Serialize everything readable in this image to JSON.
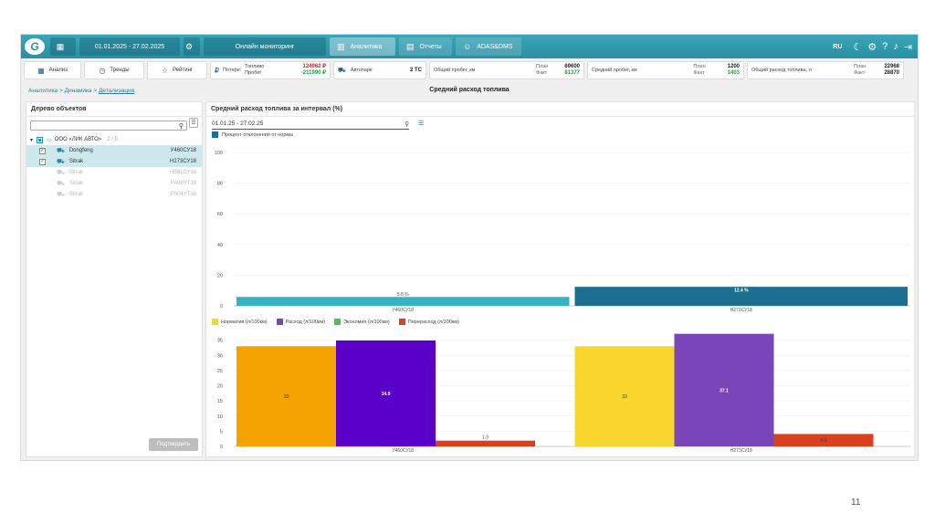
{
  "topbar": {
    "date_range": "01.01.2025 - 27.02.2025",
    "tabs": [
      "Онлайн мониторинг",
      "Аналитика",
      "Отчеты",
      "ADAS&DMS"
    ],
    "lang": "RU"
  },
  "subbar": {
    "buttons": [
      "Анализ",
      "Тренды",
      "Рейтинг"
    ],
    "losses_label": "Потери:",
    "fuel_label": "Топливо",
    "mileage_label": "Пробег",
    "fuel_value": "124962 ₽",
    "mileage_value": "-211990 ₽",
    "fleet_label": "Автопарк:",
    "fleet_value": "2 ТС",
    "kpis": [
      {
        "label": "Общий пробег, км",
        "plan_label": "План",
        "fact_label": "Факт",
        "plan": "69600",
        "fact": "81377"
      },
      {
        "label": "Средний пробег, км",
        "plan_label": "План",
        "fact_label": "Факт",
        "plan": "1200",
        "fact": "1403"
      },
      {
        "label": "Общий расход топлива, л",
        "plan_label": "План",
        "fact_label": "Факт",
        "plan": "22968",
        "fact": "28870"
      }
    ]
  },
  "breadcrumb": {
    "items": [
      "Аналитика",
      "Динамика"
    ],
    "current": "Детализация",
    "sep": " > "
  },
  "page_title": "Средний расход топлива",
  "tree": {
    "title": "Дерево объектов",
    "org": "ООО «ЛИК АВТО»",
    "org_count": "2 / 5",
    "vehicles": [
      {
        "name": "Dongfeng",
        "plate": "У460СУ18",
        "selected": true
      },
      {
        "name": "Sitrak",
        "plate": "Н273СУ18",
        "selected": true
      },
      {
        "name": "Sitrak",
        "plate": "Н561СУ18",
        "selected": false
      },
      {
        "name": "Sitrak",
        "plate": "Р499УТ18",
        "selected": false
      },
      {
        "name": "Sitrak",
        "plate": "Р504УТ18",
        "selected": false
      }
    ],
    "confirm_label": "Подтвердить"
  },
  "chart_panel": {
    "title": "Средний расход топлива за интервал (%)",
    "date_range": "01.01.25 - 27.02.25"
  },
  "colors": {
    "accent": "#2a8fa3",
    "deviation_1": "#36b3c0",
    "deviation_2": "#1b6e8f",
    "norm": "#f5a300",
    "norm_2": "#f9d62e",
    "consumption": "#5a00c8",
    "consumption_2": "#7a45b8",
    "economy": "#5cb85c",
    "overuse": "#d9411e"
  },
  "chart_data": [
    {
      "type": "bar",
      "orientation": "horizontal-bars",
      "categories": [
        "У460СУ18",
        "Н273СУ18"
      ],
      "series": [
        {
          "name": "Процент отклонения от нормы",
          "values": [
            5.8,
            12.4
          ]
        }
      ],
      "data_labels": [
        "5.8 %",
        "12.4 %"
      ],
      "yticks": [
        0,
        20,
        40,
        60,
        80,
        100
      ],
      "ylim": [
        0,
        100
      ],
      "legend": "top-left"
    },
    {
      "type": "bar",
      "categories": [
        "У460СУ18",
        "Н273СУ18"
      ],
      "series": [
        {
          "name": "Норматив (л/100км)",
          "values": [
            33,
            33
          ]
        },
        {
          "name": "Расход (л/100км)",
          "values": [
            34.9,
            37.1
          ]
        },
        {
          "name": "Экономия (л/100км)",
          "values": [
            0,
            0
          ]
        },
        {
          "name": "Перерасход (л/100км)",
          "values": [
            1.9,
            4.1
          ]
        }
      ],
      "data_labels": [
        [
          "33",
          "34.9",
          "",
          "1.9"
        ],
        [
          "33",
          "37.1",
          "",
          "4.1"
        ]
      ],
      "yticks": [
        0,
        5,
        10,
        15,
        20,
        25,
        30,
        35
      ],
      "ylim": [
        0,
        37
      ],
      "legend": "top-left"
    }
  ],
  "page_number": "11"
}
